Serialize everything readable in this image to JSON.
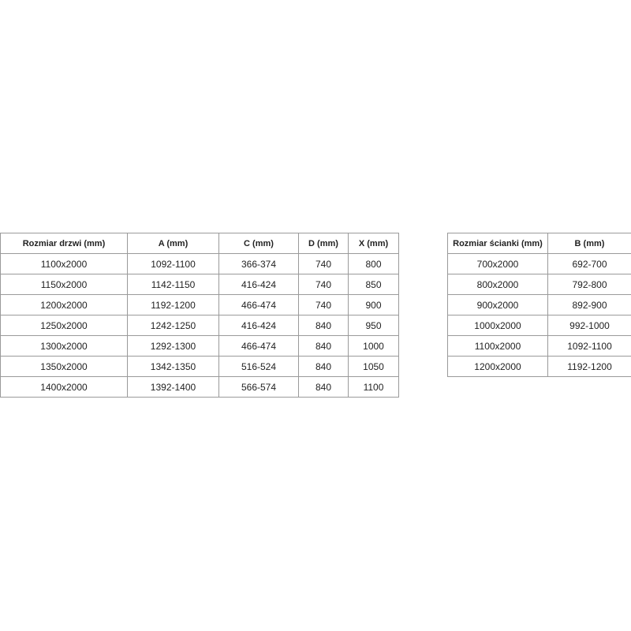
{
  "door_table": {
    "headers": [
      "Rozmiar drzwi (mm)",
      "A (mm)",
      "C (mm)",
      "D (mm)",
      "X (mm)"
    ],
    "rows": [
      [
        "1100x2000",
        "1092-1100",
        "366-374",
        "740",
        "800"
      ],
      [
        "1150x2000",
        "1142-1150",
        "416-424",
        "740",
        "850"
      ],
      [
        "1200x2000",
        "1192-1200",
        "466-474",
        "740",
        "900"
      ],
      [
        "1250x2000",
        "1242-1250",
        "416-424",
        "840",
        "950"
      ],
      [
        "1300x2000",
        "1292-1300",
        "466-474",
        "840",
        "1000"
      ],
      [
        "1350x2000",
        "1342-1350",
        "516-524",
        "840",
        "1050"
      ],
      [
        "1400x2000",
        "1392-1400",
        "566-574",
        "840",
        "1100"
      ]
    ]
  },
  "wall_table": {
    "headers": [
      "Rozmiar ścianki (mm)",
      "B (mm)"
    ],
    "rows": [
      [
        "700x2000",
        "692-700"
      ],
      [
        "800x2000",
        "792-800"
      ],
      [
        "900x2000",
        "892-900"
      ],
      [
        "1000x2000",
        "992-1000"
      ],
      [
        "1100x2000",
        "1092-1100"
      ],
      [
        "1200x2000",
        "1192-1200"
      ]
    ]
  }
}
